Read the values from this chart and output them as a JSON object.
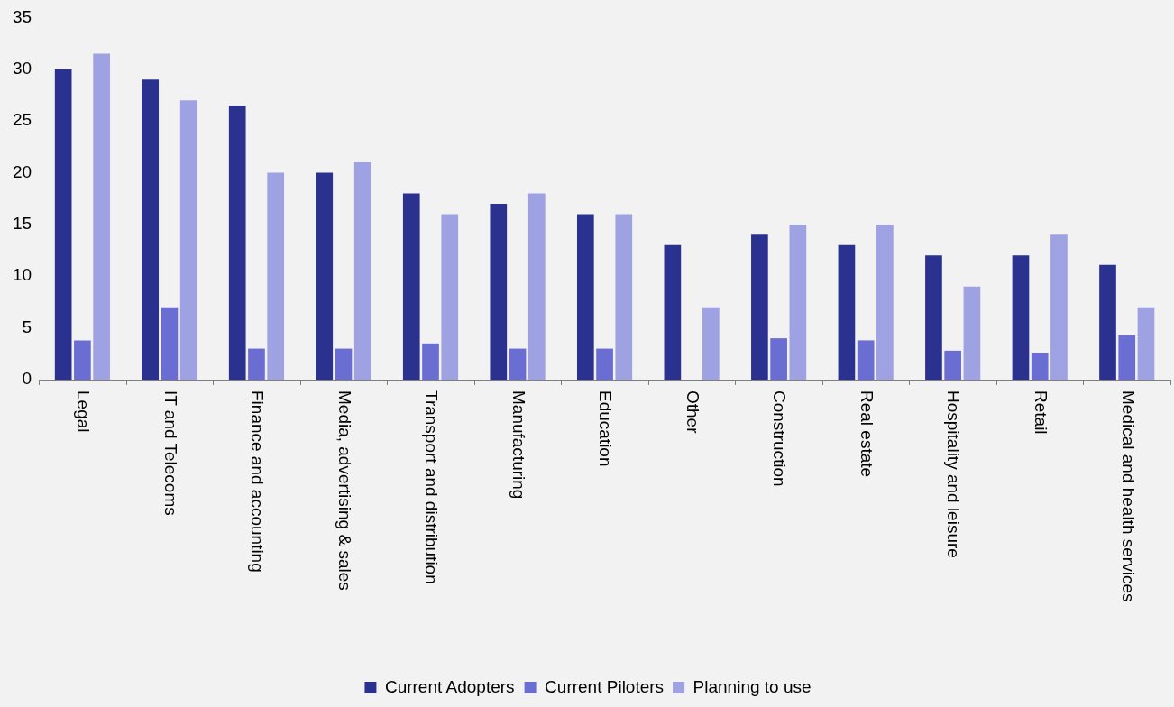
{
  "chart_data": {
    "type": "bar",
    "categories": [
      "Legal",
      "IT and Telecoms",
      "Finance and accounting",
      "Media, advertising & sales",
      "Transport and distribution",
      "Manufacturing",
      "Education",
      "Other",
      "Construction",
      "Real estate",
      "Hospitality and leisure",
      "Retail",
      "Medical and health services"
    ],
    "series": [
      {
        "name": "Current Adopters",
        "color": "#2b318f",
        "values": [
          30,
          29,
          26.5,
          20,
          18,
          17,
          16,
          13,
          14,
          13,
          12,
          12,
          11.1
        ]
      },
      {
        "name": "Current Piloters",
        "color": "#6a6ed3",
        "values": [
          3.8,
          7,
          3,
          3,
          3.5,
          3,
          3,
          null,
          4,
          3.8,
          2.8,
          2.6,
          4.3
        ]
      },
      {
        "name": "Planning to use",
        "color": "#9ea1e2",
        "values": [
          31.5,
          27,
          20,
          21,
          16,
          18,
          16,
          7,
          15,
          15,
          9,
          14,
          7
        ]
      }
    ],
    "ylim": [
      0,
      35
    ],
    "yticks": [
      0,
      5,
      10,
      15,
      20,
      25,
      30,
      35
    ],
    "grid": false,
    "legend": "bottom"
  }
}
